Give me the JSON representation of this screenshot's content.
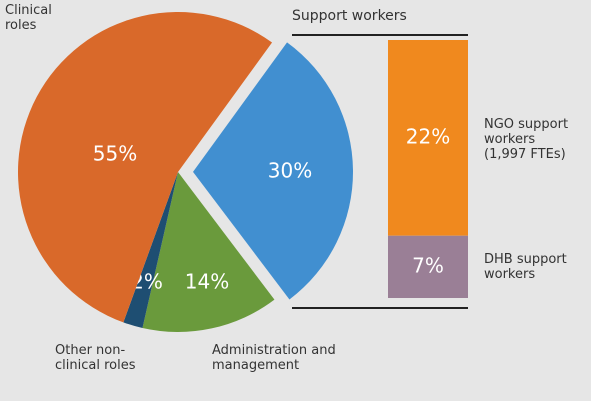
{
  "chart_data": [
    {
      "type": "pie",
      "categories": [
        "Support workers",
        "Administration and management",
        "Other non-clinical roles",
        "Clinical roles"
      ],
      "values": [
        30,
        14,
        2,
        55
      ],
      "value_labels": [
        "30%",
        "14%",
        "2%",
        "55%"
      ],
      "colors": [
        "#418fd0",
        "#6a9a3c",
        "#1e4e72",
        "#d9692a"
      ]
    },
    {
      "type": "bar",
      "title": "Support workers",
      "categories": [
        "NGO support workers (1,997 FTEs)",
        "DHB support workers"
      ],
      "values": [
        22,
        7
      ],
      "value_labels": [
        "22%",
        "7%"
      ],
      "colors": [
        "#f0891e",
        "#9a7f96"
      ]
    }
  ]
}
